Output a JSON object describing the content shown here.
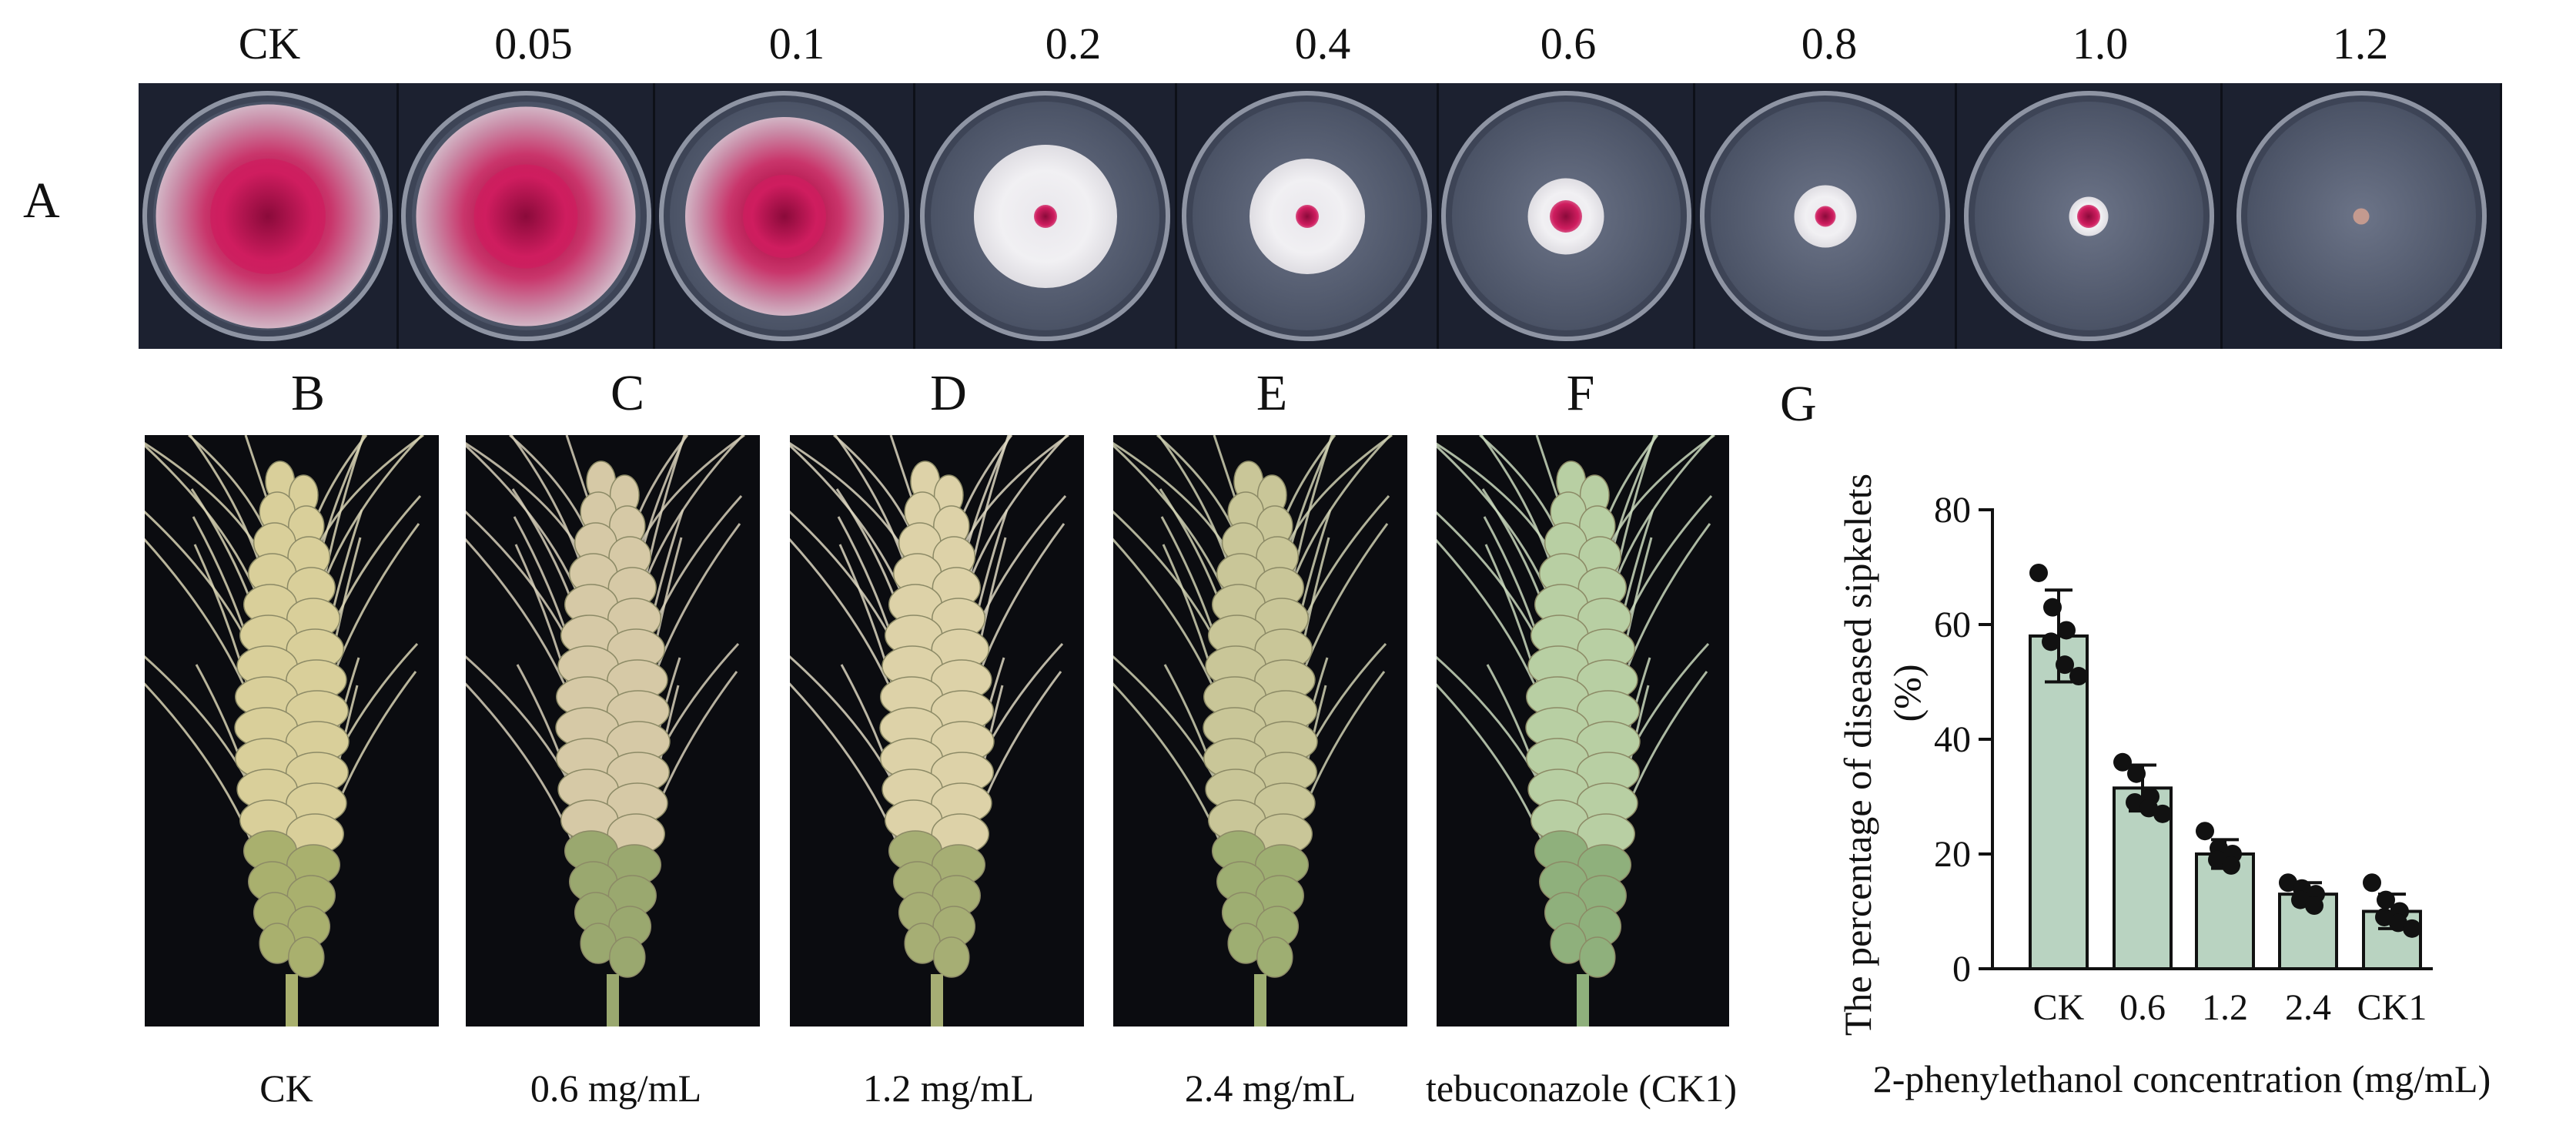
{
  "panel_a": {
    "letter": "A",
    "dishes": [
      {
        "label": "CK",
        "colony_fraction": 0.97,
        "core_fraction": 0.5
      },
      {
        "label": "0.05",
        "colony_fraction": 0.95,
        "core_fraction": 0.45
      },
      {
        "label": "0.1",
        "colony_fraction": 0.86,
        "core_fraction": 0.36
      },
      {
        "label": "0.2",
        "colony_fraction": 0.62,
        "core_fraction": 0.1
      },
      {
        "label": "0.4",
        "colony_fraction": 0.5,
        "core_fraction": 0.1
      },
      {
        "label": "0.6",
        "colony_fraction": 0.33,
        "core_fraction": 0.14
      },
      {
        "label": "0.8",
        "colony_fraction": 0.27,
        "core_fraction": 0.09
      },
      {
        "label": "1.0",
        "colony_fraction": 0.17,
        "core_fraction": 0.1
      },
      {
        "label": "1.2",
        "colony_fraction": 0.07,
        "core_fraction": 0.0
      }
    ]
  },
  "panels_wheat": [
    {
      "letter": "B",
      "caption": "CK"
    },
    {
      "letter": "C",
      "caption": "0.6 mg/mL"
    },
    {
      "letter": "D",
      "caption": "1.2 mg/mL"
    },
    {
      "letter": "E",
      "caption": "2.4 mg/mL"
    },
    {
      "letter": "F",
      "caption": "tebuconazole (CK1)"
    }
  ],
  "panel_g": {
    "letter": "G"
  },
  "colors": {
    "bar_fill": "#b9d3c1",
    "bar_stroke": "#111111",
    "point": "#111111",
    "dish_bg": "#1c2130",
    "colony_white": "#e8e6ea",
    "colony_pink": "#c2185b"
  },
  "chart_data": {
    "type": "bar",
    "categories": [
      "CK",
      "0.6",
      "1.2",
      "2.4",
      "CK1"
    ],
    "values": [
      58,
      31.5,
      20,
      13,
      10
    ],
    "errors": [
      8,
      4,
      2.5,
      2,
      3
    ],
    "points": [
      [
        69,
        63,
        59,
        57,
        53,
        51
      ],
      [
        36,
        34,
        30,
        29,
        28,
        27
      ],
      [
        24,
        21,
        20,
        19,
        18
      ],
      [
        15,
        14,
        13,
        12,
        11
      ],
      [
        15,
        12,
        10,
        9,
        8,
        7
      ]
    ],
    "xlabel": "2-phenylethanol concentration (mg/mL)",
    "ylabel": "The percentage of diseased sipkelets (%)",
    "ylabel_line1": "The percentage of diseased sipkelets",
    "ylabel_line2": "(%)",
    "ylim": [
      0,
      80
    ],
    "yticks": [
      "0",
      "20",
      "40",
      "60",
      "80"
    ],
    "grid": false
  }
}
